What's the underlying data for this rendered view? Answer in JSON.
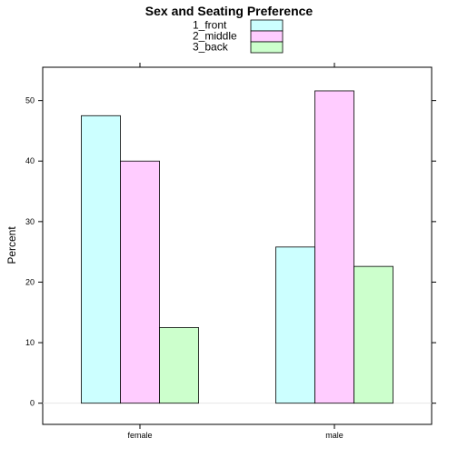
{
  "chart_data": {
    "type": "bar",
    "title": "Sex and Seating Preference",
    "xlabel": "",
    "ylabel": "Percent",
    "categories": [
      "female",
      "male"
    ],
    "series": [
      {
        "name": "1_front",
        "values": [
          47.5,
          25.8
        ],
        "color": "#ccffff"
      },
      {
        "name": "2_middle",
        "values": [
          40.0,
          51.6
        ],
        "color": "#ffccff"
      },
      {
        "name": "3_back",
        "values": [
          12.5,
          22.6
        ],
        "color": "#ccffcc"
      }
    ],
    "ylim": [
      -3.5,
      55.5
    ],
    "yticks": [
      "0",
      "10",
      "20",
      "30",
      "40",
      "50"
    ],
    "legend_position": "top-center",
    "reference_line": 0
  }
}
